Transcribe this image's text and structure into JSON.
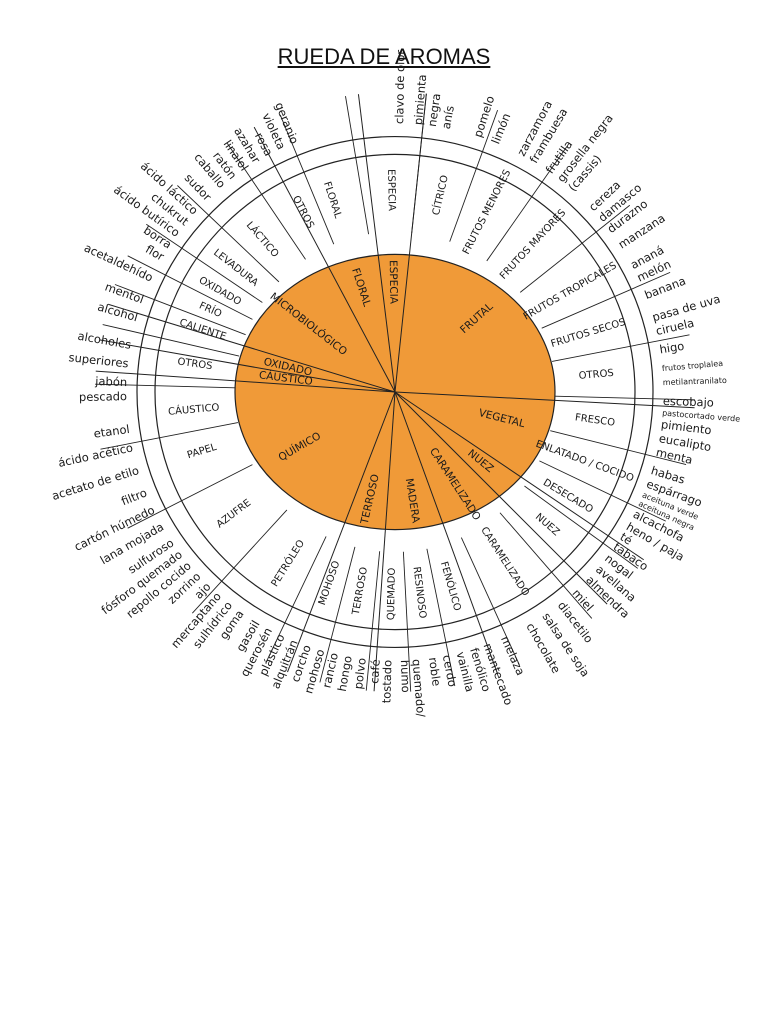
{
  "title": "RUEDA DE AROMAS",
  "colors": {
    "inner_fill": "#f09a38",
    "line": "#222222",
    "text": "#1a1a1a",
    "background": "#ffffff"
  },
  "wheel": {
    "categories": [
      {
        "label": "FLORAL",
        "a1": -28,
        "a2": -7,
        "mid": -18
      },
      {
        "label": "ESPECIA",
        "a1": -7,
        "a2": 6,
        "mid": -1
      },
      {
        "label": "FRUTAL",
        "a1": 6,
        "a2": 93,
        "mid": 48
      },
      {
        "label": "VEGETAL",
        "a1": 93,
        "a2": 124,
        "mid": 104
      },
      {
        "label": "NUEZ",
        "a1": 124,
        "a2": 135,
        "mid": 129
      },
      {
        "label": "CARAMELIZADO",
        "a1": 135,
        "a2": 160,
        "mid": 147
      },
      {
        "label": "MADERA",
        "a1": 160,
        "a2": 184,
        "mid": 171
      },
      {
        "label": "TERROSO",
        "a1": 184,
        "a2": 201,
        "mid": 193
      },
      {
        "label": "QUÍMICO",
        "a1": 201,
        "a2": 274,
        "mid": 240
      },
      {
        "label": "CÁUSTICO",
        "a1": 274,
        "a2": 280,
        "mid": 277
      },
      {
        "label": "OXIDADO",
        "a1": 280,
        "a2": 287,
        "mid": 283
      },
      {
        "label": "MICROBIOLÓGICO",
        "a1": 287,
        "a2": 332,
        "mid": 308
      }
    ],
    "subcategories": [
      {
        "label": "FLORAL",
        "mid": -18
      },
      {
        "label": "ESPECIA",
        "mid": -1
      },
      {
        "label": "CÍTRICO",
        "mid": 13
      },
      {
        "label": "FRUTOS MENORES",
        "mid": 27
      },
      {
        "label": "FRUTOS MAYORES",
        "mid": 43
      },
      {
        "label": "FRUTOS TROPICALES",
        "mid": 60
      },
      {
        "label": "FRUTOS SECOS",
        "mid": 73
      },
      {
        "label": "OTROS",
        "mid": 85
      },
      {
        "label": "FRESCO",
        "mid": 98
      },
      {
        "label": "ENLATADO / COCIDO",
        "mid": 110
      },
      {
        "label": "DESECADO",
        "mid": 121
      },
      {
        "label": "NUEZ",
        "mid": 131
      },
      {
        "label": "CARAMELIZADO",
        "mid": 147
      },
      {
        "label": "FENÓLICO",
        "mid": 164
      },
      {
        "label": "RESINOSO",
        "mid": 173
      },
      {
        "label": "QUEMADO",
        "mid": 181
      },
      {
        "label": "TERROSO",
        "mid": 190
      },
      {
        "label": "MOHOSO",
        "mid": 199
      },
      {
        "label": "PETRÓLEO",
        "mid": 212
      },
      {
        "label": "AZUFRE",
        "mid": 233
      },
      {
        "label": "PAPEL",
        "mid": 253
      },
      {
        "label": "CÁUSTICO",
        "mid": 265
      },
      {
        "label": "OTROS",
        "mid": 278
      },
      {
        "label": "CALIENTE",
        "mid": 288
      },
      {
        "label": "FRÍO",
        "mid": 294
      },
      {
        "label": "OXIDADO",
        "mid": 300
      },
      {
        "label": "LEVADURA",
        "mid": 308
      },
      {
        "label": "LÁCTICO",
        "mid": 319
      },
      {
        "label": "OTROS",
        "mid": 333
      }
    ],
    "descriptors": [
      {
        "label": "geranio",
        "a": -22
      },
      {
        "label": "violeta",
        "a": -25
      },
      {
        "label": "rosa",
        "a": -28
      },
      {
        "label": "azahar",
        "a": -31
      },
      {
        "label": "linalol",
        "a": -34
      },
      {
        "label": "ratón",
        "a": -37
      },
      {
        "label": "caballo",
        "a": -40
      },
      {
        "label": "sudor",
        "a": -44
      },
      {
        "label": "ácido láctico",
        "a": -48
      },
      {
        "label": "chukrut",
        "a": -51
      },
      {
        "label": "ácido butírico",
        "a": -54
      },
      {
        "label": "borra",
        "a": -57
      },
      {
        "label": "flor",
        "a": -60
      },
      {
        "label": "acetaldehído",
        "a": -65
      },
      {
        "label": "mentol",
        "a": -70
      },
      {
        "label": "alcohol",
        "a": -74
      },
      {
        "label": "alcoholes",
        "a": -80
      },
      {
        "label": "superiores",
        "a": -84
      },
      {
        "label": "jabón",
        "a": -88
      },
      {
        "label": "pescado",
        "a": -91
      },
      {
        "label": "etanol",
        "a": -98
      },
      {
        "label": "ácido acético",
        "a": -102
      },
      {
        "label": "acetato de etilo",
        "a": -107
      },
      {
        "label": "filtro",
        "a": -112
      },
      {
        "label": "cartón húmedo",
        "a": -116
      },
      {
        "label": "lana mojada",
        "a": -120
      },
      {
        "label": "sulfuroso",
        "a": -124
      },
      {
        "label": "fósforo quemado",
        "a": -127
      },
      {
        "label": "repollo cocido",
        "a": -130
      },
      {
        "label": "zorrino",
        "a": -133
      },
      {
        "label": "ajo",
        "a": -136
      },
      {
        "label": "mercaptano",
        "a": -139
      },
      {
        "label": "sulhídrico",
        "a": -142
      },
      {
        "label": "goma",
        "a": -145
      },
      {
        "label": "gasoil",
        "a": -149
      },
      {
        "label": "querosén",
        "a": -152
      },
      {
        "label": "plástico",
        "a": -155
      },
      {
        "label": "alquitrán",
        "a": -158
      },
      {
        "label": "corcho",
        "a": -161
      },
      {
        "label": "mohoso",
        "a": -164
      },
      {
        "label": "rancio",
        "a": -167
      },
      {
        "label": "hongo",
        "a": -170
      },
      {
        "label": "polvo",
        "a": -173
      },
      {
        "label": "café",
        "a": -176
      },
      {
        "label": "tostado",
        "a": -178.5
      },
      {
        "label": "humo",
        "a": 178
      },
      {
        "label": "quemado/",
        "a": 175.5
      },
      {
        "label": "roble",
        "a": 172
      },
      {
        "label": "cerdo",
        "a": 169
      },
      {
        "label": "vainilla",
        "a": 166
      },
      {
        "label": "fenólico",
        "a": 163
      },
      {
        "label": "mantecado",
        "a": 160
      },
      {
        "label": "melaza",
        "a": 156
      },
      {
        "label": "chocolate",
        "a": 150
      },
      {
        "label": "salsa de soja",
        "a": 146
      },
      {
        "label": "diacetilo",
        "a": 142
      },
      {
        "label": "miel",
        "a": 138
      },
      {
        "label": "almendra",
        "a": 134
      },
      {
        "label": "avellana",
        "a": 131
      },
      {
        "label": "nogal",
        "a": 128
      },
      {
        "label": "tabaco",
        "a": 125
      },
      {
        "label": "té",
        "a": 122.5
      },
      {
        "label": "heno / paja",
        "a": 120
      },
      {
        "label": "alcachofa",
        "a": 117
      },
      {
        "label": "aceituna negra",
        "a": 114.5,
        "small": true
      },
      {
        "label": "aceituna verde",
        "a": 112.5,
        "small": true
      },
      {
        "label": "espárrago",
        "a": 110
      },
      {
        "label": "habas",
        "a": 107
      },
      {
        "label": "menta",
        "a": 103
      },
      {
        "label": "eucalipto",
        "a": 100
      },
      {
        "label": "pimiento",
        "a": 97
      },
      {
        "label": "pastocortado verde",
        "a": 94.5,
        "small": true
      },
      {
        "label": "escobajo",
        "a": 92
      },
      {
        "label": "metilantranilato",
        "a": 88,
        "small": true
      },
      {
        "label": "frutos troplalea",
        "a": 85,
        "small": true
      },
      {
        "label": "higo",
        "a": 81
      },
      {
        "label": "ciruela",
        "a": 77
      },
      {
        "label": "pasa de uva",
        "a": 74
      },
      {
        "label": "banana",
        "a": 69
      },
      {
        "label": "melón",
        "a": 65
      },
      {
        "label": "ananá",
        "a": 62
      },
      {
        "label": "manzana",
        "a": 57
      },
      {
        "label": "durazno",
        "a": 53
      },
      {
        "label": "damasco",
        "a": 50
      },
      {
        "label": "cereza",
        "a": 47
      },
      {
        "label": "(cassis)",
        "a": 41
      },
      {
        "label": "grosella negra",
        "a": 38
      },
      {
        "label": "frutilla",
        "a": 35
      },
      {
        "label": "frambuesa",
        "a": 31
      },
      {
        "label": "zarzamora",
        "a": 28
      },
      {
        "label": "limón",
        "a": 22
      },
      {
        "label": "pomelo",
        "a": 18
      },
      {
        "label": "anís",
        "a": 11
      },
      {
        "label": "negra",
        "a": 8
      },
      {
        "label": "pimienta",
        "a": 5
      },
      {
        "label": "clavo de olor",
        "a": 1
      }
    ]
  }
}
